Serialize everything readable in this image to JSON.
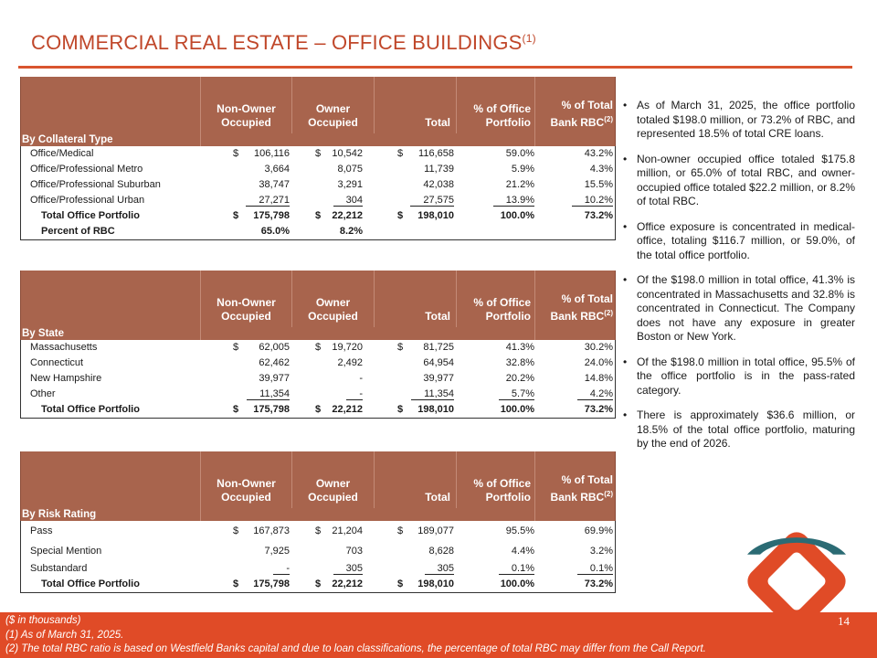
{
  "page": {
    "title": "COMMERCIAL REAL ESTATE – OFFICE BUILDINGS",
    "title_sup": "(1)",
    "page_number": "14"
  },
  "headers": {
    "non_owner": "Non-Owner Occupied",
    "owner": "Owner Occupied",
    "total": "Total",
    "pct_office": "% of Office Portfolio",
    "pct_rbc": "% of Total Bank RBC",
    "pct_rbc_sup": "(2)"
  },
  "table1": {
    "section": "By Collateral Type",
    "rows": [
      {
        "label": "Office/Medical",
        "c1": "$",
        "v1": "106,116",
        "c2": "$",
        "v2": "10,542",
        "c3": "$",
        "v3": "116,658",
        "p1": "59.0%",
        "p2": "43.2%"
      },
      {
        "label": "Office/Professional Metro",
        "c1": "",
        "v1": "3,664",
        "c2": "",
        "v2": "8,075",
        "c3": "",
        "v3": "11,739",
        "p1": "5.9%",
        "p2": "4.3%"
      },
      {
        "label": "Office/Professional Suburban",
        "c1": "",
        "v1": "38,747",
        "c2": "",
        "v2": "3,291",
        "c3": "",
        "v3": "42,038",
        "p1": "21.2%",
        "p2": "15.5%"
      },
      {
        "label": "Office/Professional Urban",
        "c1": "",
        "v1": "27,271",
        "c2": "",
        "v2": "304",
        "c3": "",
        "v3": "27,575",
        "p1": "13.9%",
        "p2": "10.2%"
      }
    ],
    "total": {
      "label": "Total Office Portfolio",
      "c1": "$",
      "v1": "175,798",
      "c2": "$",
      "v2": "22,212",
      "c3": "$",
      "v3": "198,010",
      "p1": "100.0%",
      "p2": "73.2%"
    },
    "pct_rbc": {
      "label": "Percent of RBC",
      "v1": "65.0%",
      "v2": "8.2%"
    }
  },
  "table2": {
    "section": "By State",
    "rows": [
      {
        "label": "Massachusetts",
        "c1": "$",
        "v1": "62,005",
        "c2": "$",
        "v2": "19,720",
        "c3": "$",
        "v3": "81,725",
        "p1": "41.3%",
        "p2": "30.2%"
      },
      {
        "label": "Connecticut",
        "c1": "",
        "v1": "62,462",
        "c2": "",
        "v2": "2,492",
        "c3": "",
        "v3": "64,954",
        "p1": "32.8%",
        "p2": "24.0%"
      },
      {
        "label": "New Hampshire",
        "c1": "",
        "v1": "39,977",
        "c2": "",
        "v2": "-",
        "c3": "",
        "v3": "39,977",
        "p1": "20.2%",
        "p2": "14.8%"
      },
      {
        "label": "Other",
        "c1": "",
        "v1": "11,354",
        "c2": "",
        "v2": "-",
        "c3": "",
        "v3": "11,354",
        "p1": "5.7%",
        "p2": "4.2%"
      }
    ],
    "total": {
      "label": "Total Office Portfolio",
      "c1": "$",
      "v1": "175,798",
      "c2": "$",
      "v2": "22,212",
      "c3": "$",
      "v3": "198,010",
      "p1": "100.0%",
      "p2": "73.2%"
    }
  },
  "table3": {
    "section": "By Risk Rating",
    "rows": [
      {
        "label": "Pass",
        "c1": "$",
        "v1": "167,873",
        "c2": "$",
        "v2": "21,204",
        "c3": "$",
        "v3": "189,077",
        "p1": "95.5%",
        "p2": "69.9%"
      },
      {
        "label": "Special Mention",
        "c1": "",
        "v1": "7,925",
        "c2": "",
        "v2": "703",
        "c3": "",
        "v3": "8,628",
        "p1": "4.4%",
        "p2": "3.2%"
      },
      {
        "label": "Substandard",
        "c1": "",
        "v1": "-",
        "c2": "",
        "v2": "305",
        "c3": "",
        "v3": "305",
        "p1": "0.1%",
        "p2": "0.1%"
      }
    ],
    "total": {
      "label": "Total Office Portfolio",
      "c1": "$",
      "v1": "175,798",
      "c2": "$",
      "v2": "22,212",
      "c3": "$",
      "v3": "198,010",
      "p1": "100.0%",
      "p2": "73.2%"
    }
  },
  "bullets": [
    "As of March 31, 2025, the office portfolio totaled $198.0 million, or 73.2% of RBC, and represented 18.5% of total CRE loans.",
    "Non-owner occupied office totaled $175.8 million, or 65.0% of total RBC, and owner-occupied office totaled $22.2 million, or 8.2% of total RBC.",
    "Office exposure is concentrated in medical-office, totaling $116.7 million, or 59.0%, of the total office portfolio.",
    "Of the $198.0 million in total office, 41.3% is concentrated in Massachusetts and 32.8% is concentrated in Connecticut. The Company does not have any exposure in greater Boston or New York.",
    "Of the $198.0 million in total office, 95.5% of the office portfolio is in the pass-rated category.",
    "There is approximately $36.6 million, or 18.5% of the total office portfolio, maturing by the end of 2026."
  ],
  "footnotes": [
    "($ in thousands)",
    "(1)  As of March 31, 2025.",
    "(2)  The total RBC ratio is based on Westfield Banks capital and due to loan classifications, the percentage of total RBC may differ from the Call Report."
  ],
  "colors": {
    "accent": "#e04b27",
    "header_brown": "#a8644d",
    "logo_orange": "#e04b27",
    "logo_teal": "#2b6b74"
  }
}
